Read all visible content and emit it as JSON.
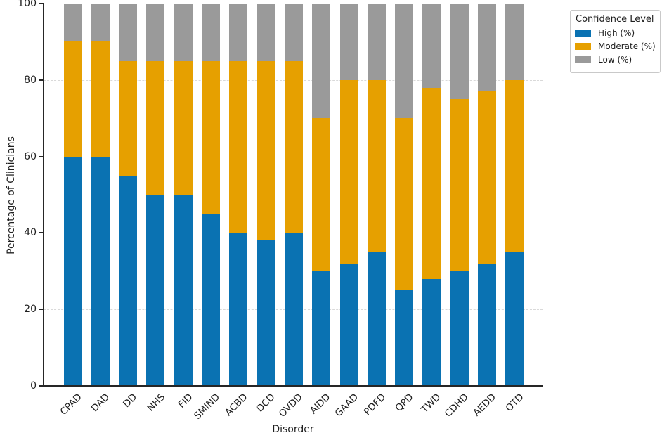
{
  "chart_data": {
    "type": "bar",
    "stacked": true,
    "title": "",
    "xlabel": "Disorder",
    "ylabel": "Percentage of Clinicians",
    "legend_title": "Confidence Level",
    "legend_position": "outside upper right",
    "ylim": [
      0,
      100
    ],
    "yticks": [
      0,
      20,
      40,
      60,
      80,
      100
    ],
    "grid": "horizontal dashed at yticks",
    "categories": [
      "CPAD",
      "DAD",
      "DD",
      "NHS",
      "FID",
      "SMIND",
      "ACBD",
      "DCD",
      "OVDD",
      "AIDD",
      "GAAD",
      "PDFD",
      "QPD",
      "TWD",
      "CDHD",
      "AEDD",
      "OTD"
    ],
    "series": [
      {
        "name": "High (%)",
        "color": "#0a72b2",
        "values": [
          60,
          60,
          55,
          50,
          50,
          45,
          40,
          38,
          40,
          30,
          32,
          35,
          25,
          28,
          30,
          32,
          35
        ]
      },
      {
        "name": "Moderate (%)",
        "color": "#e6a000",
        "values": [
          30,
          30,
          30,
          35,
          35,
          40,
          45,
          47,
          45,
          40,
          48,
          45,
          45,
          50,
          45,
          45,
          45
        ]
      },
      {
        "name": "Low (%)",
        "color": "#9a9a9a",
        "values": [
          10,
          10,
          15,
          15,
          15,
          15,
          15,
          15,
          15,
          30,
          20,
          20,
          30,
          22,
          25,
          23,
          20
        ]
      }
    ]
  },
  "colors": {
    "high": "#0a72b2",
    "moderate": "#e6a000",
    "low": "#9a9a9a",
    "gridline": "#d9d9d9",
    "axis": "#262626",
    "text": "#1f1f1f",
    "legend_border": "#c9c9c9",
    "background": "#ffffff"
  }
}
